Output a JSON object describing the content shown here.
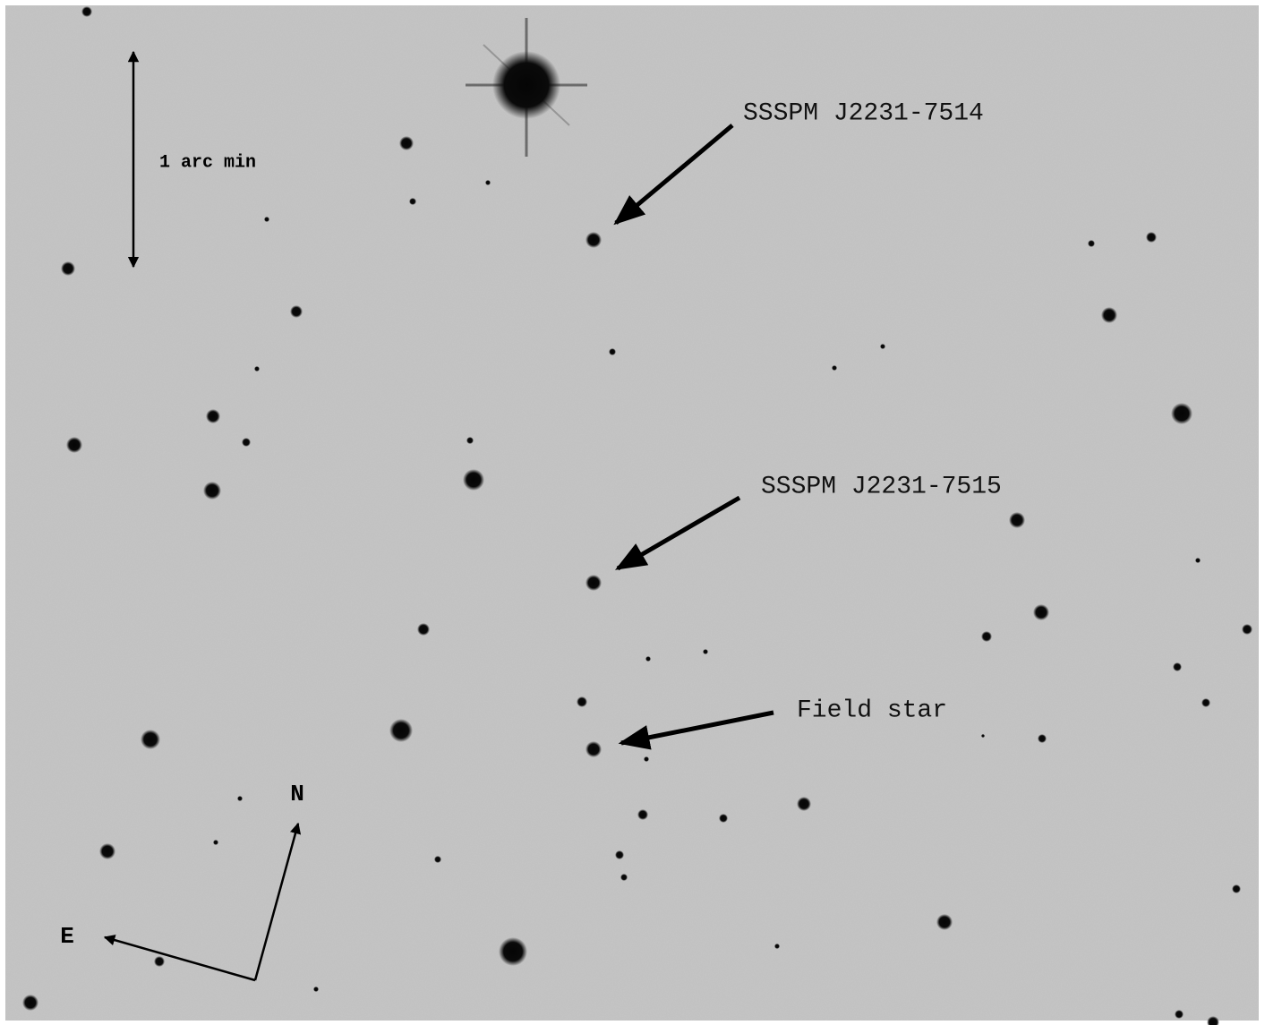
{
  "labels": {
    "target1": "SSSPM J2231-7514",
    "target2": "SSSPM J2231-7515",
    "field_star": "Field star",
    "scale": "1 arc min",
    "north": "N",
    "east": "E"
  }
}
